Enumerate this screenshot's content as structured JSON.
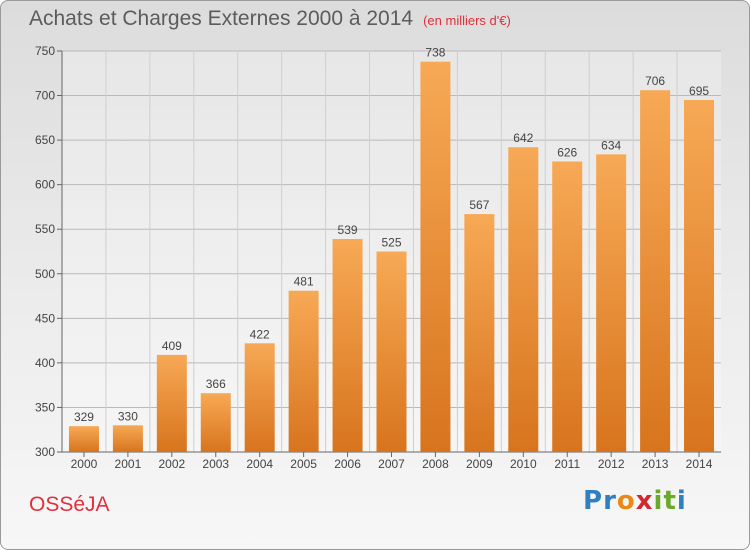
{
  "chart_data": {
    "type": "bar",
    "title": "Achats et Charges Externes 2000 à 2014",
    "subtitle": "(en milliers d'€)",
    "categories": [
      "2000",
      "2001",
      "2002",
      "2003",
      "2004",
      "2005",
      "2006",
      "2007",
      "2008",
      "2009",
      "2010",
      "2011",
      "2012",
      "2013",
      "2014"
    ],
    "values": [
      329,
      330,
      409,
      366,
      422,
      481,
      539,
      525,
      738,
      567,
      642,
      626,
      634,
      706,
      695
    ],
    "ylim": [
      300,
      750
    ],
    "yticks": [
      300,
      350,
      400,
      450,
      500,
      550,
      600,
      650,
      700,
      750
    ],
    "grid": true,
    "legend": "none"
  },
  "place_name": "OSSéJA",
  "logo": {
    "letters": [
      "P",
      "r",
      "o",
      "x",
      "i",
      "t",
      "i"
    ],
    "colors": [
      "#2f7fc1",
      "#2f7fc1",
      "#e98a16",
      "#d2282e",
      "#6aaa2a",
      "#6aaa2a",
      "#2f7fc1"
    ]
  },
  "colors": {
    "bar_light": "#f7a955",
    "bar_dark": "#d8741e",
    "accent": "#e0303c",
    "text": "#5c5c5c"
  }
}
